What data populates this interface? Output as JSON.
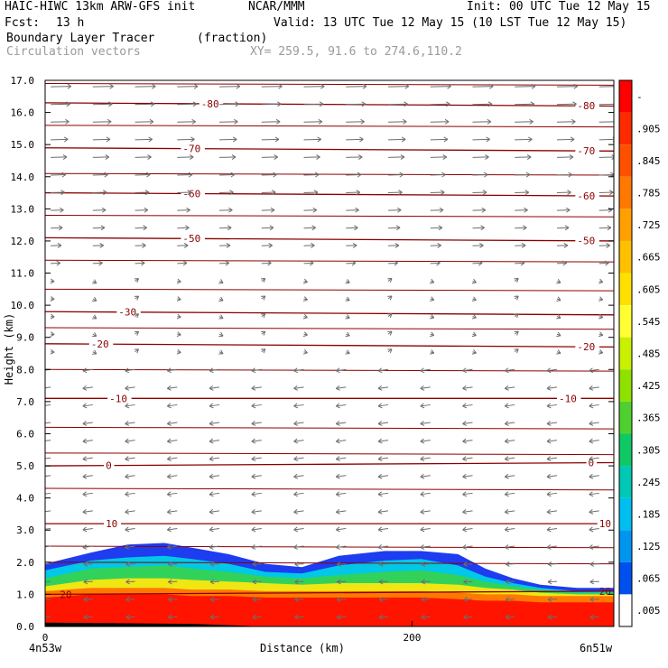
{
  "header": {
    "title": "HAIC-HIWC 13km ARW-GFS init",
    "org": "NCAR/MMM",
    "init": "Init: 00 UTC Tue 12 May 15",
    "fcst_label": "Fcst:",
    "fcst_value": "13 h",
    "valid": "Valid: 13 UTC Tue 12 May 15 (10 LST Tue 12 May 15)",
    "field": "Boundary Layer Tracer",
    "field_units": "(fraction)",
    "vectors": "Circulation vectors",
    "xy": "XY= 259.5, 91.6 to 274.6,110.2"
  },
  "chart_data": {
    "type": "heatmap",
    "xlabel": "Distance (km)",
    "ylabel": "Height (km)",
    "xlim": [
      0,
      310
    ],
    "ylim": [
      0,
      17
    ],
    "x_ticks": [
      0,
      200
    ],
    "x_tick_labels": [
      "0",
      "200"
    ],
    "x_end_labels": [
      "4n53w",
      "6n51w"
    ],
    "y_ticks": [
      0,
      1,
      2,
      3,
      4,
      5,
      6,
      7,
      8,
      9,
      10,
      11,
      12,
      13,
      14,
      15,
      16,
      17
    ],
    "y_tick_labels": [
      "0.0",
      "1.0",
      "2.0",
      "3.0",
      "4.0",
      "5.0",
      "6.0",
      "7.0",
      "8.0",
      "9.0",
      "10.0",
      "11.0",
      "12.0",
      "13.0",
      "14.0",
      "15.0",
      "16.0",
      "17.0"
    ],
    "colorbar": {
      "labels": [
        "-",
        ".905",
        ".845",
        ".785",
        ".725",
        ".665",
        ".605",
        ".545",
        ".485",
        ".425",
        ".365",
        ".305",
        ".245",
        ".185",
        ".125",
        ".065",
        ".005"
      ],
      "colors": [
        "#ff0000",
        "#ff2a00",
        "#ff5000",
        "#ff7800",
        "#ffa000",
        "#ffc000",
        "#ffe000",
        "#ffff33",
        "#c8f000",
        "#90e000",
        "#50d030",
        "#10c864",
        "#00c8b4",
        "#00bef0",
        "#0096f0",
        "#0050f0",
        "#ffffff"
      ]
    },
    "tracer_top": [
      {
        "x": 0,
        "blue": 1.95,
        "cyan": 1.75,
        "green": 1.5,
        "yellow": 1.25,
        "orange": 1.1
      },
      {
        "x": 25,
        "blue": 2.3,
        "cyan": 2.05,
        "green": 1.8,
        "yellow": 1.45,
        "orange": 1.2
      },
      {
        "x": 45,
        "blue": 2.55,
        "cyan": 2.15,
        "green": 1.85,
        "yellow": 1.5,
        "orange": 1.2
      },
      {
        "x": 65,
        "blue": 2.6,
        "cyan": 2.2,
        "green": 1.9,
        "yellow": 1.5,
        "orange": 1.2
      },
      {
        "x": 80,
        "blue": 2.45,
        "cyan": 2.1,
        "green": 1.8,
        "yellow": 1.45,
        "orange": 1.15
      },
      {
        "x": 100,
        "blue": 2.25,
        "cyan": 1.95,
        "green": 1.7,
        "yellow": 1.4,
        "orange": 1.15
      },
      {
        "x": 120,
        "blue": 1.95,
        "cyan": 1.7,
        "green": 1.55,
        "yellow": 1.35,
        "orange": 1.1
      },
      {
        "x": 140,
        "blue": 1.85,
        "cyan": 1.65,
        "green": 1.5,
        "yellow": 1.3,
        "orange": 1.1
      },
      {
        "x": 160,
        "blue": 2.2,
        "cyan": 1.9,
        "green": 1.6,
        "yellow": 1.35,
        "orange": 1.1
      },
      {
        "x": 185,
        "blue": 2.35,
        "cyan": 2.05,
        "green": 1.7,
        "yellow": 1.35,
        "orange": 1.1
      },
      {
        "x": 205,
        "blue": 2.35,
        "cyan": 2.1,
        "green": 1.75,
        "yellow": 1.35,
        "orange": 1.1
      },
      {
        "x": 225,
        "blue": 2.25,
        "cyan": 1.9,
        "green": 1.6,
        "yellow": 1.3,
        "orange": 1.05
      },
      {
        "x": 240,
        "blue": 1.8,
        "cyan": 1.55,
        "green": 1.4,
        "yellow": 1.2,
        "orange": 1.0
      },
      {
        "x": 255,
        "blue": 1.5,
        "cyan": 1.35,
        "green": 1.25,
        "yellow": 1.15,
        "orange": 1.0
      },
      {
        "x": 270,
        "blue": 1.3,
        "cyan": 1.2,
        "green": 1.15,
        "yellow": 1.05,
        "orange": 0.95
      },
      {
        "x": 290,
        "blue": 1.2,
        "cyan": 1.1,
        "green": 1.05,
        "yellow": 1.0,
        "orange": 0.95
      },
      {
        "x": 310,
        "blue": 1.2,
        "cyan": 1.1,
        "green": 1.05,
        "yellow": 1.0,
        "orange": 0.95
      }
    ],
    "temperature_contours": [
      {
        "label": "-80",
        "y0": 16.3,
        "y1": 16.2,
        "label_x": [
          85,
          290
        ]
      },
      {
        "label": "-70",
        "y0": 14.9,
        "y1": 14.8,
        "label_x": [
          75,
          290
        ]
      },
      {
        "label": "-60",
        "y0": 13.5,
        "y1": 13.4,
        "label_x": [
          75,
          290
        ]
      },
      {
        "label": "-50",
        "y0": 12.1,
        "y1": 12.0,
        "label_x": [
          75,
          290
        ]
      },
      {
        "label": "-30",
        "y0": 9.8,
        "y1": 9.7,
        "label_x": [
          40
        ]
      },
      {
        "label": "-20",
        "y0": 8.8,
        "y1": 8.7,
        "label_x": [
          25,
          290
        ]
      },
      {
        "label": "-10",
        "y0": 7.1,
        "y1": 7.1,
        "label_x": [
          35,
          280
        ]
      },
      {
        "label": "0",
        "y0": 5.0,
        "y1": 5.1,
        "label_x": [
          33,
          296
        ]
      },
      {
        "label": "10",
        "y0": 3.2,
        "y1": 3.2,
        "label_x": [
          33,
          302
        ]
      },
      {
        "label": "20",
        "y0": 1.0,
        "y1": 1.1,
        "label_x": [
          8,
          302
        ]
      }
    ],
    "other_contour_levels": [
      16.9,
      15.6,
      14.1,
      12.8,
      11.4,
      10.5,
      9.3,
      8.0,
      6.2,
      5.4,
      4.3,
      2.5,
      2.0
    ]
  }
}
